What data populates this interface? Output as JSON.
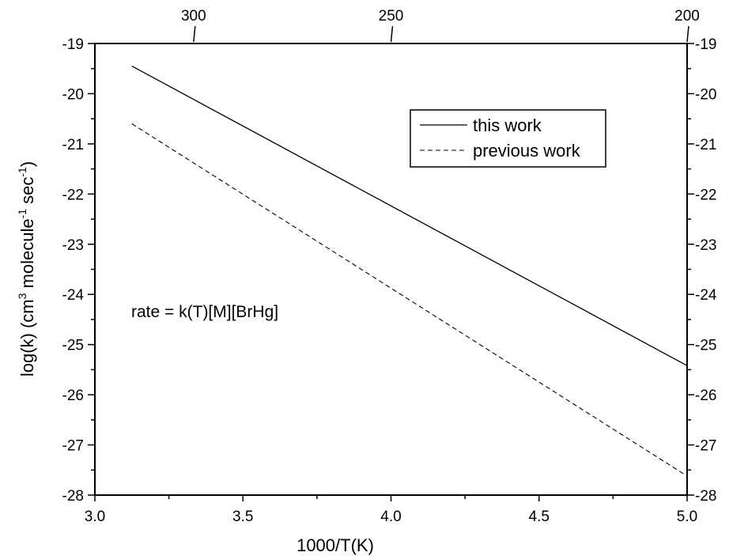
{
  "chart_data": {
    "type": "line",
    "xlabel": "1000/T(K)",
    "ylabel": "log(k) (cm",
    "ylabel_sup1": "3",
    "ylabel_mid": " molecule",
    "ylabel_sup2": "-1",
    "ylabel_mid2": " sec",
    "ylabel_sup3": "-1",
    "ylabel_end": ")",
    "xlim": [
      3.0,
      5.0
    ],
    "ylim": [
      -28,
      -19
    ],
    "x_ticks": [
      "3.0",
      "3.5",
      "4.0",
      "4.5",
      "5.0"
    ],
    "y_ticks_left": [
      "-19",
      "-20",
      "-21",
      "-22",
      "-23",
      "-24",
      "-25",
      "-26",
      "-27",
      "-28"
    ],
    "y_ticks_right": [
      "-19",
      "-20",
      "-21",
      "-22",
      "-23",
      "-24",
      "-25",
      "-26",
      "-27",
      "-28"
    ],
    "top_axis_ticks": [
      {
        "label": "300",
        "temperature_K": 300
      },
      {
        "label": "250",
        "temperature_K": 250
      },
      {
        "label": "200",
        "temperature_K": 200
      }
    ],
    "grid": false,
    "legend_position": "top-right",
    "annotation": "rate = k(T)[M][BrHg]",
    "series": [
      {
        "name": "this work",
        "style": "solid",
        "x": [
          3.125,
          5.0
        ],
        "y": [
          -19.45,
          -25.42
        ]
      },
      {
        "name": "previous work",
        "style": "dashed",
        "x": [
          3.125,
          5.0
        ],
        "y": [
          -20.6,
          -27.62
        ]
      }
    ]
  }
}
